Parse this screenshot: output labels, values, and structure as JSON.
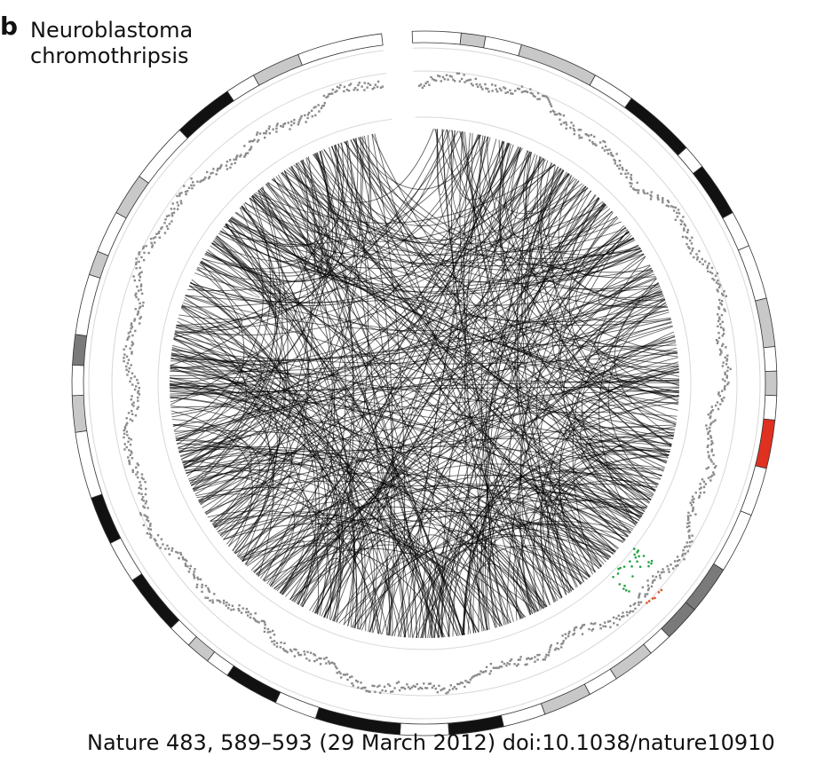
{
  "figure": {
    "panel_letter": "b",
    "title_lines": [
      "Neuroblastoma",
      "chromothripsis"
    ],
    "citation": "Nature 483, 589–593 (29 March 2012) doi:10.1038/nature10910"
  },
  "colors": {
    "band_black": "#111111",
    "band_dark_gray": "#7a7a7a",
    "band_light_gray": "#c8c8c8",
    "band_white": "#ffffff",
    "centromere": "#e03020",
    "copy_number_points": "#8a8a8a",
    "gain_points": "#e05020",
    "loss_points": "#20a040",
    "rearrangement_arcs": "#000000"
  }
}
